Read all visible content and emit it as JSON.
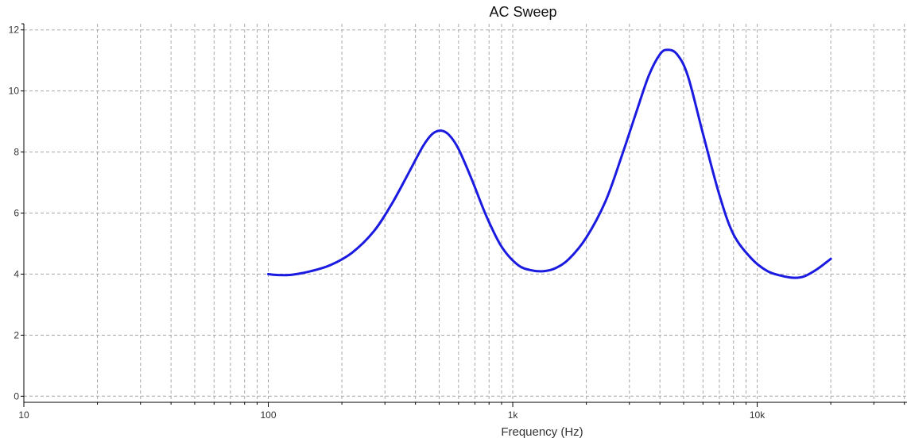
{
  "chart_data": {
    "type": "line",
    "title": "AC Sweep",
    "xlabel": "Frequency (Hz)",
    "ylabel": "",
    "x_scale": "log",
    "xlim": [
      10,
      41000
    ],
    "ylim": [
      -0.2,
      12.2
    ],
    "x_ticks": [
      {
        "value": 10,
        "label": "10"
      },
      {
        "value": 100,
        "label": "100"
      },
      {
        "value": 1000,
        "label": "1k"
      },
      {
        "value": 10000,
        "label": "10k"
      }
    ],
    "y_ticks": [
      {
        "value": 0,
        "label": "0"
      },
      {
        "value": 2,
        "label": "2"
      },
      {
        "value": 4,
        "label": "4"
      },
      {
        "value": 6,
        "label": "6"
      },
      {
        "value": 8,
        "label": "8"
      },
      {
        "value": 10,
        "label": "10"
      },
      {
        "value": 12,
        "label": "12"
      }
    ],
    "grid": true,
    "legend": "none",
    "series": [
      {
        "color": "#1a1ae0",
        "x": [
          100,
          110,
          125,
          150,
          180,
          220,
          270,
          320,
          380,
          430,
          470,
          510,
          550,
          600,
          680,
          780,
          900,
          1050,
          1200,
          1350,
          1500,
          1700,
          2000,
          2400,
          2800,
          3200,
          3600,
          4000,
          4300,
          4700,
          5200,
          6000,
          7000,
          8000,
          9500,
          11000,
          12500,
          14000,
          15500,
          17500,
          20000
        ],
        "y": [
          4.0,
          3.97,
          3.98,
          4.1,
          4.3,
          4.7,
          5.4,
          6.3,
          7.4,
          8.2,
          8.6,
          8.7,
          8.55,
          8.1,
          7.1,
          5.9,
          4.9,
          4.3,
          4.12,
          4.1,
          4.2,
          4.5,
          5.2,
          6.4,
          7.9,
          9.3,
          10.5,
          11.2,
          11.35,
          11.2,
          10.5,
          8.6,
          6.6,
          5.3,
          4.5,
          4.1,
          3.95,
          3.88,
          3.92,
          4.15,
          4.5
        ]
      }
    ]
  }
}
